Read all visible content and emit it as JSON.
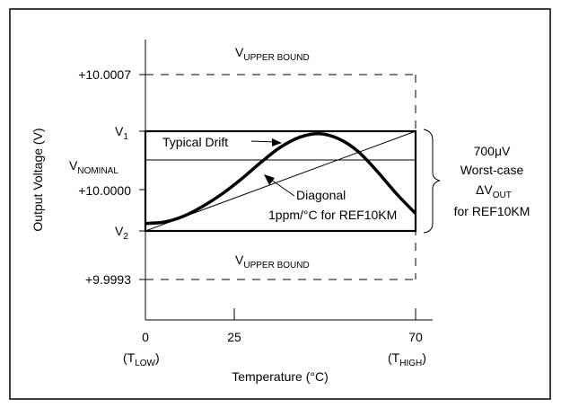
{
  "chart_data": {
    "type": "line",
    "xlabel": "Temperature (°C)",
    "ylabel": "Output Voltage (V)",
    "x_ticks": [
      {
        "value": 0,
        "label": "0",
        "sub_base": "(T",
        "sub": "LOW",
        "sub_close": ")"
      },
      {
        "value": 25,
        "label": "25",
        "sub_base": "",
        "sub": "",
        "sub_close": ""
      },
      {
        "value": 70,
        "label": "70",
        "sub_base": "(T",
        "sub": "HIGH",
        "sub_close": ")"
      }
    ],
    "y_labels": [
      {
        "id": "upper",
        "label": "+10.0007"
      },
      {
        "id": "v1",
        "base": "V",
        "sub": "1"
      },
      {
        "id": "vnom",
        "base": "V",
        "sub": "NOMINAL"
      },
      {
        "id": "center",
        "label": "+10.0000"
      },
      {
        "id": "v2",
        "base": "V",
        "sub": "2"
      },
      {
        "id": "lower",
        "label": "+9.9993"
      }
    ],
    "bound_labels": {
      "upper": {
        "base": "V",
        "sub": "UPPER BOUND"
      },
      "lower": {
        "base": "V",
        "sub": "UPPER BOUND"
      }
    },
    "annotations": {
      "typical_drift": "Typical Drift",
      "diagonal_line1": "Diagonal",
      "diagonal_line2": "1ppm/°C for REF10KM",
      "brace_line1": "700μV",
      "brace_line2": "Worst-case",
      "brace_delta_base": "ΔV",
      "brace_delta_sub": "OUT",
      "brace_line4": "for REF10KM"
    },
    "series": [
      {
        "kind": "typical-drift",
        "x": [
          0,
          5,
          10,
          15,
          20,
          25,
          30,
          35,
          40,
          45,
          50,
          55,
          60,
          65,
          70
        ],
        "y": [
          0.15,
          0.18,
          0.3,
          0.5,
          0.75,
          1.05,
          1.38,
          1.68,
          1.88,
          1.95,
          1.85,
          1.6,
          1.2,
          0.75,
          0.35
        ]
      },
      {
        "kind": "diagonal",
        "x": [
          0,
          70
        ],
        "y": [
          0,
          2
        ]
      }
    ],
    "xlim": [
      0,
      70
    ],
    "grid": false
  }
}
